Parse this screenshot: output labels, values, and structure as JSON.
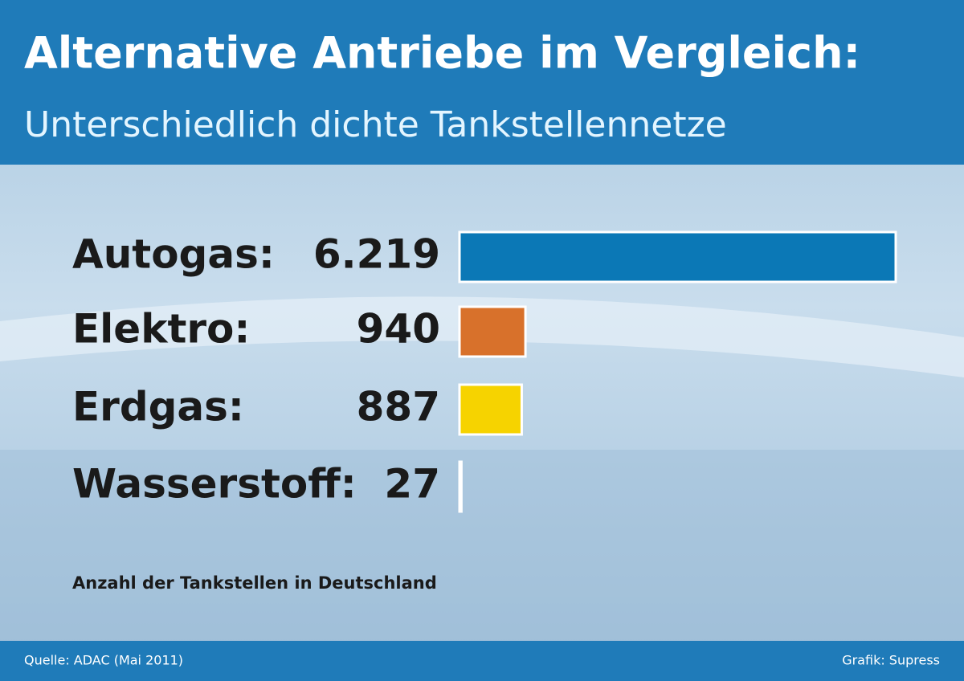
{
  "chart_data": {
    "type": "bar",
    "orientation": "horizontal",
    "title": "Alternative Antriebe im Vergleich:",
    "subtitle": "Unterschiedlich dichte Tankstellennetze",
    "categories": [
      "Autogas:",
      "Elektro:",
      "Erdgas:",
      "Wasserstoff:"
    ],
    "values": [
      6219,
      940,
      887,
      27
    ],
    "value_labels": [
      "6.219",
      "940",
      "887",
      "27"
    ],
    "colors": [
      "#0b78b6",
      "#d8712b",
      "#f6d300",
      "#1c4f79"
    ],
    "note": "Anzahl der Tankstellen in Deutschland",
    "source": "Quelle: ADAC (Mai 2011)",
    "credit": "Grafik: Supress"
  }
}
